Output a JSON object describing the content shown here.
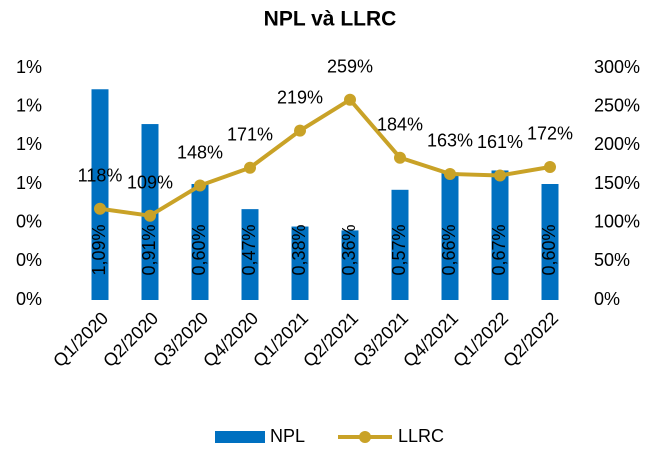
{
  "chart_data": {
    "type": "combo",
    "title": "NPL và LLRC",
    "categories": [
      "Q1/2020",
      "Q2/2020",
      "Q3/2020",
      "Q4/2020",
      "Q1/2021",
      "Q2/2021",
      "Q3/2021",
      "Q4/2021",
      "Q1/2022",
      "Q2/2022"
    ],
    "series": [
      {
        "name": "NPL",
        "type": "bar",
        "color": "#0070c0",
        "values": [
          1.09,
          0.91,
          0.6,
          0.47,
          0.38,
          0.36,
          0.57,
          0.66,
          0.67,
          0.6
        ],
        "value_labels": [
          "1,09%",
          "0,91%",
          "0,60%",
          "0,47%",
          "0,38%",
          "0,36%",
          "0,57%",
          "0,66%",
          "0,67%",
          "0,60%"
        ]
      },
      {
        "name": "LLRC",
        "type": "line",
        "axis": "y2",
        "color": "#c9a227",
        "values": [
          118,
          109,
          148,
          171,
          219,
          259,
          184,
          163,
          161,
          172
        ],
        "value_labels": [
          "118%",
          "109%",
          "148%",
          "171%",
          "219%",
          "259%",
          "184%",
          "163%",
          "161%",
          "172%"
        ]
      }
    ],
    "ylim": [
      0,
      1.2
    ],
    "yticks": [
      {
        "value": 0,
        "label": "0%"
      },
      {
        "value": 0.2,
        "label": "0%"
      },
      {
        "value": 0.4,
        "label": "0%"
      },
      {
        "value": 0.6,
        "label": "1%"
      },
      {
        "value": 0.8,
        "label": "1%"
      },
      {
        "value": 1.0,
        "label": "1%"
      },
      {
        "value": 1.2,
        "label": "1%"
      }
    ],
    "y2lim": [
      0,
      300
    ],
    "y2ticks": [
      {
        "value": 0,
        "label": "0%"
      },
      {
        "value": 50,
        "label": "50%"
      },
      {
        "value": 100,
        "label": "100%"
      },
      {
        "value": 150,
        "label": "150%"
      },
      {
        "value": 200,
        "label": "200%"
      },
      {
        "value": 250,
        "label": "250%"
      },
      {
        "value": 300,
        "label": "300%"
      }
    ],
    "legend": "bottom"
  }
}
